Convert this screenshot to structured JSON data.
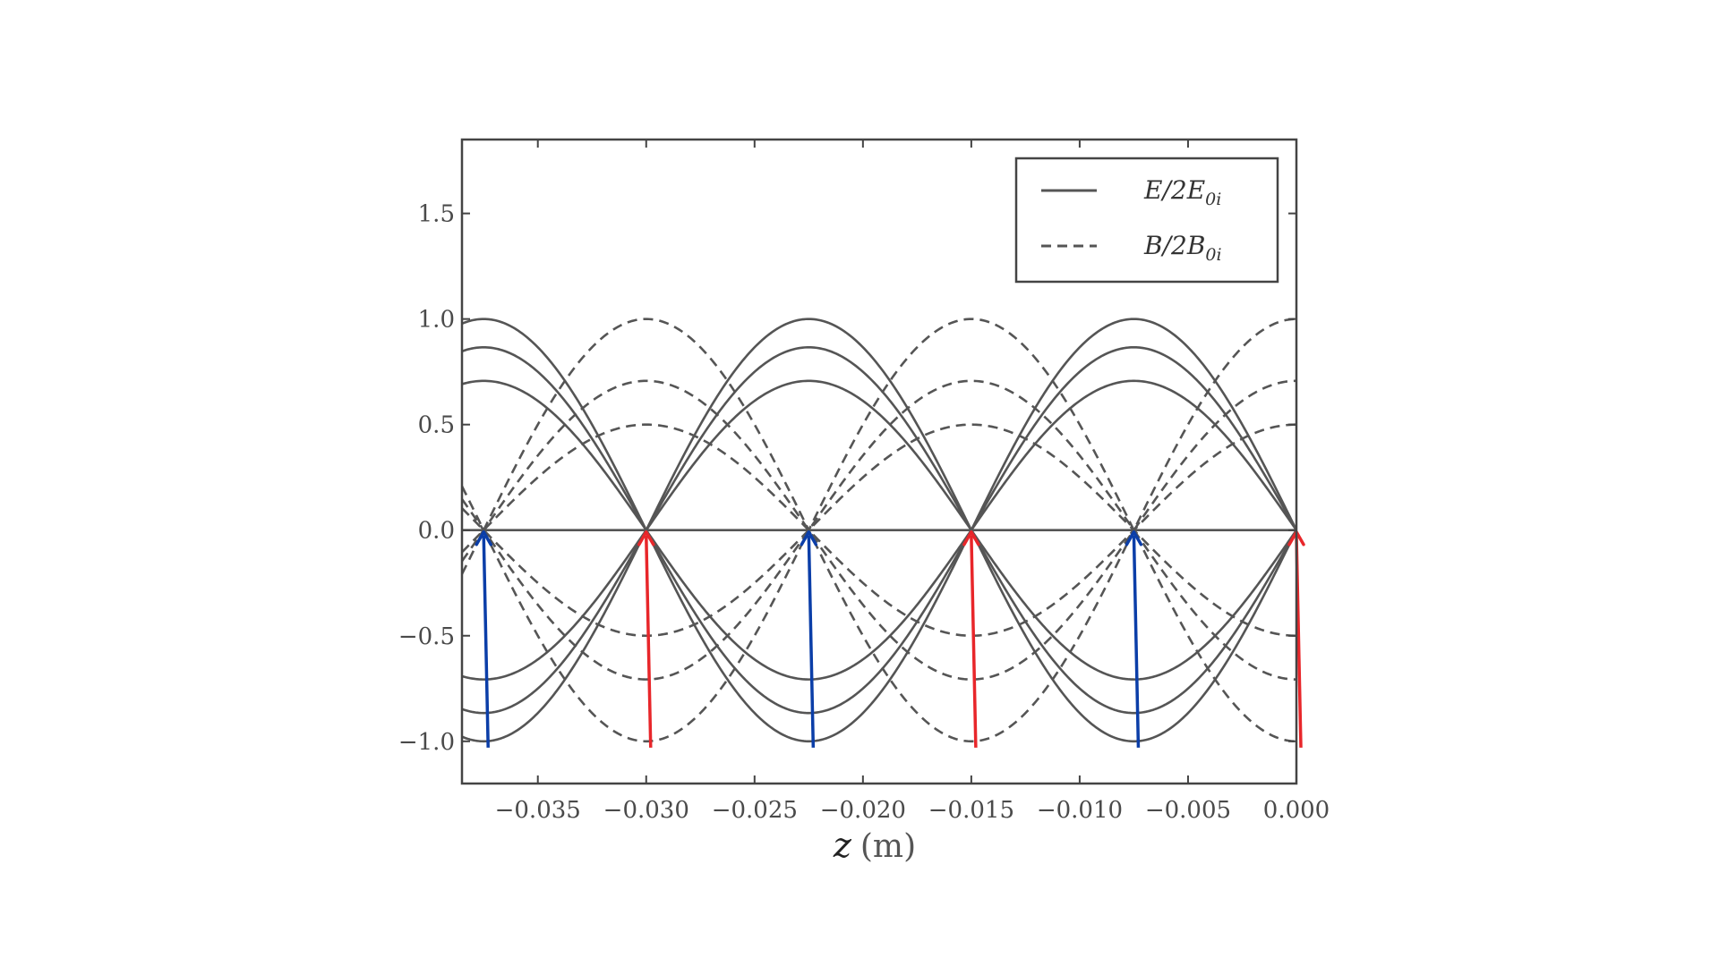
{
  "chart_data": {
    "type": "line",
    "xlabel_var": "z",
    "xlabel_unit": "(m)",
    "xlim": [
      -0.0385,
      0.0
    ],
    "ylim": [
      -1.2,
      1.85
    ],
    "x_ticks": [
      "−0.035",
      "−0.030",
      "−0.025",
      "−0.020",
      "−0.015",
      "−0.010",
      "−0.005",
      "0.000"
    ],
    "x_tick_values": [
      -0.035,
      -0.03,
      -0.025,
      -0.02,
      -0.015,
      -0.01,
      -0.005,
      0.0
    ],
    "y_ticks": [
      "−1.0",
      "−0.5",
      "0.0",
      "0.5",
      "1.0",
      "1.5"
    ],
    "y_tick_values": [
      -1.0,
      -0.5,
      0.0,
      0.5,
      1.0,
      1.5
    ],
    "wavelength_m": 0.03,
    "legend": {
      "position": "top-right",
      "entries": [
        {
          "style": "solid",
          "base": "E/2E",
          "sub": "0i"
        },
        {
          "style": "dashed",
          "base": "B/2B",
          "sub": "0i"
        }
      ]
    },
    "series": [
      {
        "field": "E",
        "style": "solid",
        "amplitudes": [
          1.0,
          0.866,
          0.707,
          0.0,
          -0.707,
          -0.866,
          -1.0
        ]
      },
      {
        "field": "B",
        "style": "dashed",
        "amplitudes": [
          1.0,
          0.707,
          0.5,
          -0.5,
          -0.707,
          -1.0
        ]
      }
    ],
    "markers": [
      {
        "x": -0.0375,
        "color": "#0b3ea8"
      },
      {
        "x": -0.03,
        "color": "#e8262a"
      },
      {
        "x": -0.0225,
        "color": "#0b3ea8"
      },
      {
        "x": -0.015,
        "color": "#e8262a"
      },
      {
        "x": -0.0075,
        "color": "#0b3ea8"
      },
      {
        "x": 0.0,
        "color": "#e8262a"
      }
    ],
    "colors": {
      "curve": "#555555",
      "frame": "#444444",
      "blue_arrow": "#0b3ea8",
      "red_arrow": "#e8262a"
    }
  }
}
